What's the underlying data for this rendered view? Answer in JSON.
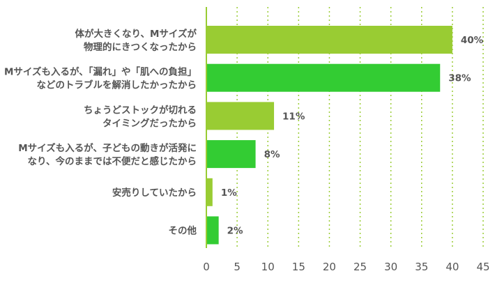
{
  "chart_data": {
    "type": "bar",
    "orientation": "horizontal",
    "categories": [
      [
        "体が大きくなり、Mサイズが",
        "物理的にきつくなったから"
      ],
      [
        "Mサイズも入るが、「漏れ」や「肌への負担」",
        "などのトラブルを解消したかったから"
      ],
      [
        "ちょうどストックが切れる",
        "タイミングだったから"
      ],
      [
        "Mサイズも入るが、子どもの動きが活発に",
        "なり、今のままでは不便だと感じたから"
      ],
      [
        "安売りしていたから"
      ],
      [
        "その他"
      ]
    ],
    "values": [
      40,
      38,
      11,
      8,
      1,
      2
    ],
    "data_labels": [
      "40%",
      "38%",
      "11%",
      "8%",
      "1%",
      "2%"
    ],
    "bar_colors": [
      "#99cc33",
      "#33cc33",
      "#99cc33",
      "#33cc33",
      "#99cc33",
      "#33cc33"
    ],
    "xlim": [
      0,
      45
    ],
    "xticks": [
      "0",
      "5",
      "10",
      "15",
      "20",
      "25",
      "30",
      "35",
      "40",
      "45"
    ],
    "grid": "vertical dotted",
    "grid_color": "#99cc33",
    "title": "",
    "xlabel": "",
    "ylabel": ""
  }
}
